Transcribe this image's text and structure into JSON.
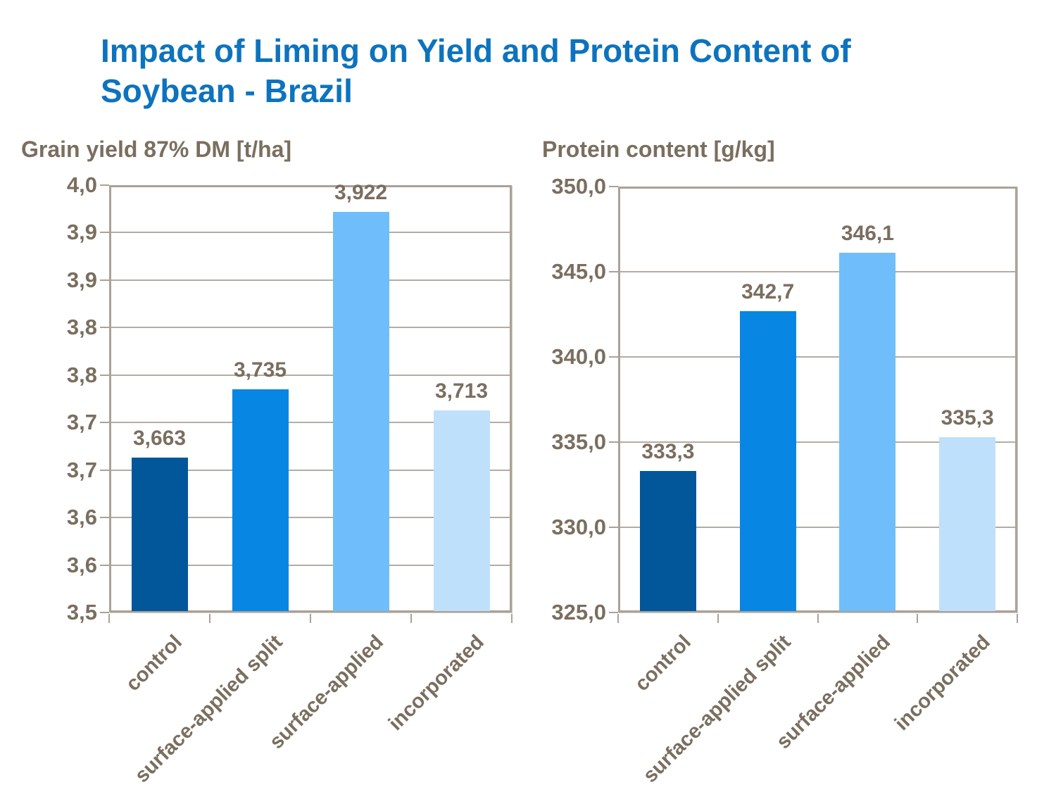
{
  "page_title": {
    "line1": "Impact of Liming on Yield and Protein Content of",
    "line2": "Soybean - Brazil"
  },
  "colors": {
    "title_blue": "#0D73BE",
    "text_brown": "#7A6E5F",
    "frame": "#AAA298",
    "gridline": "#B4ACA3",
    "bar_colors": [
      "#02579B",
      "#0786E3",
      "#6FBEFB",
      "#BFE0FA"
    ]
  },
  "chart_data": [
    {
      "type": "bar",
      "title": "Grain yield 87% DM [t/ha]",
      "categories": [
        "control",
        "surface-applied split",
        "surface-applied",
        "incorporated"
      ],
      "values": [
        3.663,
        3.735,
        3.922,
        3.713
      ],
      "value_labels": [
        "3,663",
        "3,735",
        "3,922",
        "3,713"
      ],
      "ylim": [
        3.5,
        3.95
      ],
      "ytick_labels": [
        "4,0",
        "3,9",
        "3,9",
        "3,8",
        "3,8",
        "3,7",
        "3,7",
        "3,6",
        "3,6",
        "3,5"
      ],
      "grid": true,
      "legend": "none"
    },
    {
      "type": "bar",
      "title": "Protein content [g/kg]",
      "categories": [
        "control",
        "surface-applied split",
        "surface-applied",
        "incorporated"
      ],
      "values": [
        333.3,
        342.7,
        346.1,
        335.3
      ],
      "value_labels": [
        "333,3",
        "342,7",
        "346,1",
        "335,3"
      ],
      "ylim": [
        325,
        350
      ],
      "ytick_labels": [
        "350,0",
        "345,0",
        "340,0",
        "335,0",
        "330,0",
        "325,0"
      ],
      "grid": true,
      "legend": "none"
    }
  ]
}
